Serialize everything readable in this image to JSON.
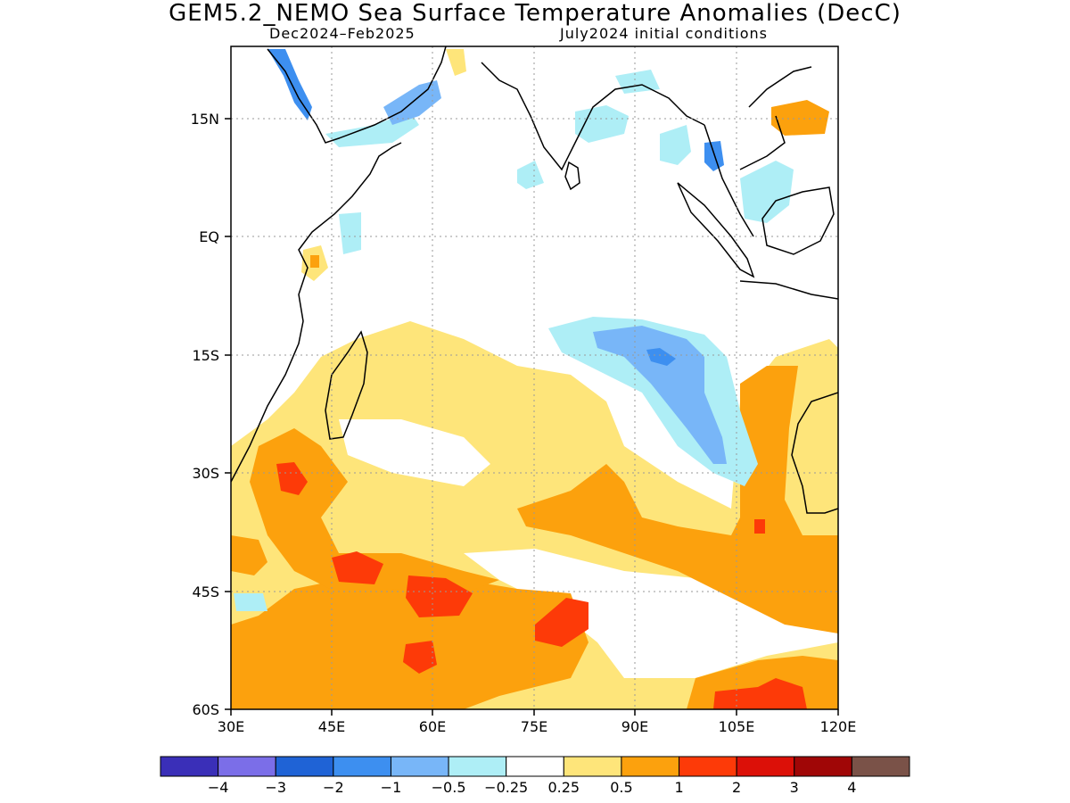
{
  "title": "GEM5.2_NEMO Sea Surface Temperature Anomalies (DecC)",
  "subtitle_left": "Dec2024–Feb2025",
  "subtitle_right": "July2024 initial conditions",
  "map": {
    "lon_range": [
      30,
      120
    ],
    "lat_range": [
      -60,
      24
    ],
    "lat_ticks": [
      "15N",
      "EQ",
      "15S",
      "30S",
      "45S",
      "60S"
    ],
    "lon_ticks": [
      "30E",
      "45E",
      "60E",
      "75E",
      "90E",
      "105E",
      "120E"
    ],
    "grid": "dotted"
  },
  "colorbar": {
    "labels": [
      "−4",
      "−3",
      "−2",
      "−1",
      "−0.5",
      "−0.25",
      "0.25",
      "0.5",
      "1",
      "2",
      "3",
      "4"
    ],
    "colors": [
      "#3a2fb8",
      "#7b6ee8",
      "#1f63d6",
      "#3d8ff0",
      "#78b6f8",
      "#aeeef6",
      "#ffffff",
      "#fee57a",
      "#fca10d",
      "#fd3a08",
      "#dc1008",
      "#a00606",
      "#7a5248"
    ]
  }
}
